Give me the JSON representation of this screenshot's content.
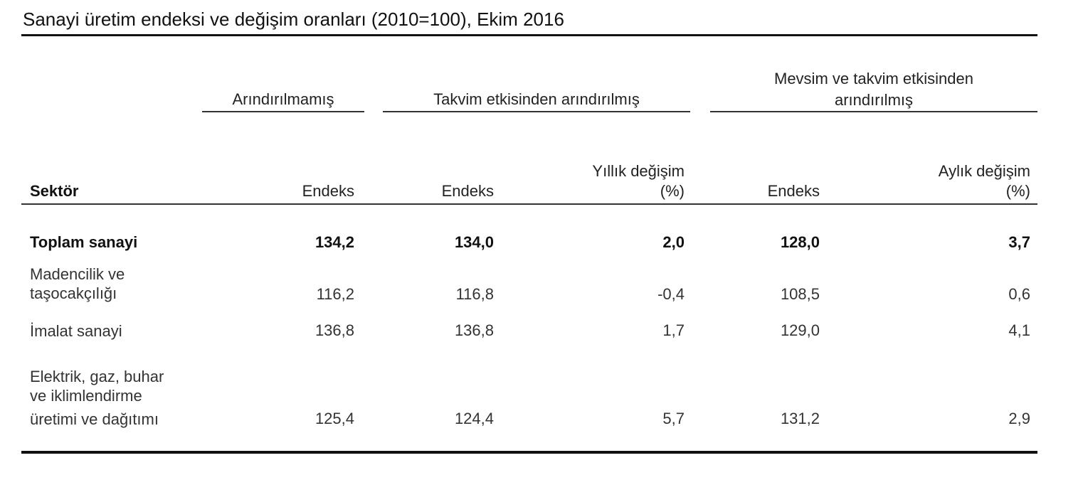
{
  "title": "Sanayi üretim endeksi ve değişim oranları (2010=100), Ekim 2016",
  "groups": {
    "unadjusted": "Arındırılmamış",
    "calendar": "Takvim etkisinden arındırılmış",
    "seasonal_line1": "Mevsim ve takvim etkisinden",
    "seasonal_line2": "arındırılmış"
  },
  "columns": {
    "sector": "Sektör",
    "endeks1": "Endeks",
    "endeks2": "Endeks",
    "annual_line1": "Yıllık değişim",
    "annual_line2": "(%)",
    "endeks3": "Endeks",
    "monthly_line1": "Aylık  değişim",
    "monthly_line2": "(%)"
  },
  "rows": [
    {
      "lines": [
        "Toplam sanayi"
      ],
      "v1": "134,2",
      "v2": "134,0",
      "v3": "2,0",
      "v4": "128,0",
      "v5": "3,7"
    },
    {
      "lines": [
        "Madencilik ve",
        "taşocakçılığı"
      ],
      "v1": "116,2",
      "v2": "116,8",
      "v3": "-0,4",
      "v4": "108,5",
      "v5": "0,6"
    },
    {
      "lines": [
        "İmalat sanayi"
      ],
      "v1": "136,8",
      "v2": "136,8",
      "v3": "1,7",
      "v4": "129,0",
      "v5": "4,1"
    },
    {
      "lines": [
        "Elektrik, gaz, buhar",
        "ve iklimlendirme",
        "üretimi ve dağıtımı"
      ],
      "v1": "125,4",
      "v2": "124,4",
      "v3": "5,7",
      "v4": "131,2",
      "v5": "2,9"
    }
  ]
}
